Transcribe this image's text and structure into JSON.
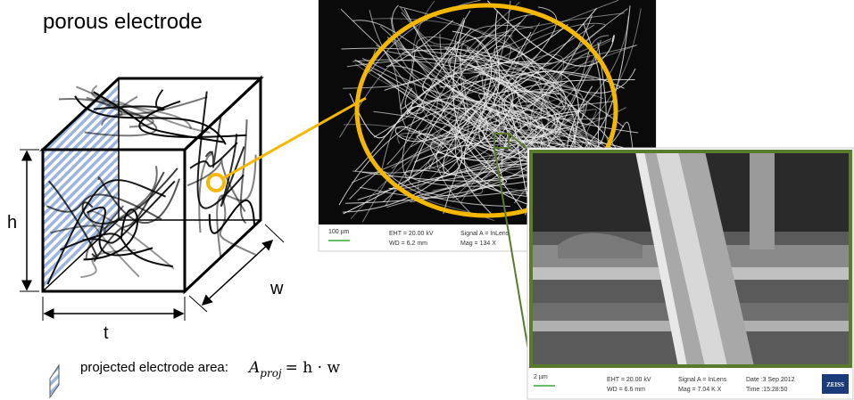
{
  "title": "porous electrode",
  "dimensions": {
    "height": "h",
    "width": "w",
    "thickness": "t"
  },
  "legend": {
    "label": "projected electrode area:",
    "formula": {
      "symbol": "A",
      "subscript": "proj",
      "equation": "= h · w"
    }
  },
  "sem_images": [
    {
      "scale_bar": "100 µm",
      "info": [
        "EHT = 20.00 kV",
        "WD = 6.2 mm",
        "Signal A = InLens",
        "Mag =  134 X"
      ]
    },
    {
      "scale_bar": "2 µm",
      "info": [
        "EHT = 20.00 kV",
        "WD = 6.6 mm",
        "Signal A = InLens",
        "Mag =  7.04 K X",
        "Date :3 Sep 2012",
        "Time :15:28:50"
      ],
      "logo": "ZEISS"
    }
  ]
}
